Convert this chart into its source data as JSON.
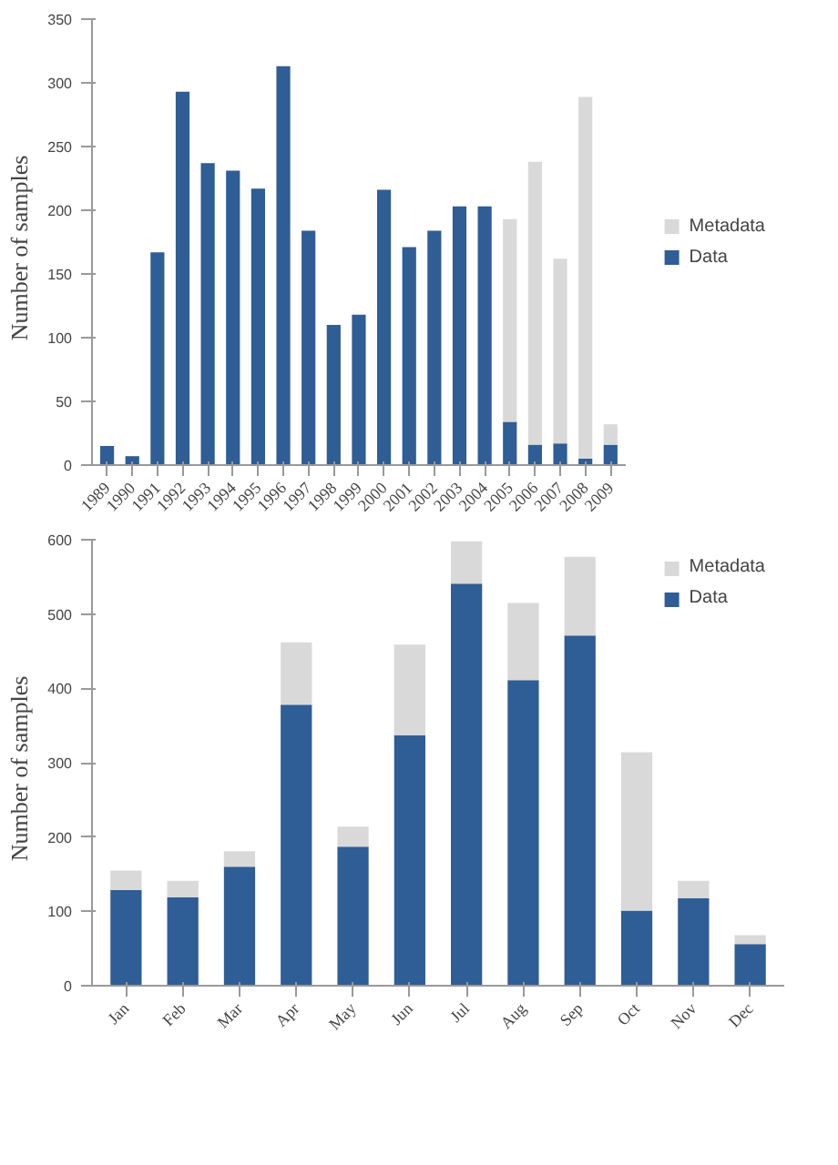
{
  "chart_data": [
    {
      "type": "bar",
      "stacked": true,
      "ylabel": "Number  of  samples",
      "categories": [
        "1989",
        "1990",
        "1991",
        "1992",
        "1993",
        "1994",
        "1995",
        "1996",
        "1997",
        "1998",
        "1999",
        "2000",
        "2001",
        "2002",
        "2003",
        "2004",
        "2005",
        "2006",
        "2007",
        "2008",
        "2009"
      ],
      "series": [
        {
          "name": "Data",
          "color": "#2f5d95",
          "values": [
            15,
            7,
            167,
            293,
            237,
            231,
            217,
            313,
            184,
            110,
            118,
            216,
            171,
            184,
            203,
            203,
            34,
            16,
            17,
            5,
            16
          ]
        },
        {
          "name": "Metadata",
          "color": "#d9d9d9",
          "values": [
            0,
            0,
            0,
            0,
            0,
            0,
            0,
            0,
            0,
            0,
            0,
            0,
            0,
            0,
            0,
            0,
            159,
            222,
            145,
            284,
            16
          ]
        }
      ],
      "ylim": [
        0,
        350
      ],
      "yticks": [
        0,
        50,
        100,
        150,
        200,
        250,
        300,
        350
      ],
      "legend": "right"
    },
    {
      "type": "bar",
      "stacked": true,
      "ylabel": "Number  of  samples",
      "categories": [
        "Jan",
        "Feb",
        "Mar",
        "Apr",
        "May",
        "Jun",
        "Jul",
        "Aug",
        "Sep",
        "Oct",
        "Nov",
        "Dec"
      ],
      "series": [
        {
          "name": "Data",
          "color": "#2f5d95",
          "values": [
            129,
            119,
            160,
            378,
            187,
            337,
            541,
            411,
            471,
            101,
            118,
            56
          ]
        },
        {
          "name": "Metadata",
          "color": "#d9d9d9",
          "values": [
            26,
            22,
            21,
            84,
            27,
            122,
            57,
            104,
            106,
            213,
            23,
            12
          ]
        }
      ],
      "ylim": [
        0,
        600
      ],
      "yticks": [
        0,
        100,
        200,
        300,
        400,
        500,
        600
      ],
      "legend": "top right"
    }
  ]
}
